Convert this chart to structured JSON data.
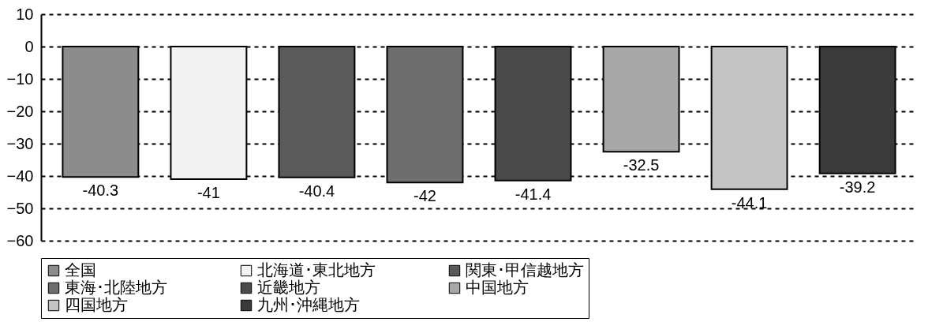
{
  "chart_data": {
    "type": "bar",
    "categories": [
      null,
      null,
      null,
      null,
      null,
      null,
      null,
      null
    ],
    "series": [
      {
        "name": "全国",
        "color": "#8c8c8c",
        "values": [
          -40.3,
          null,
          null,
          null,
          null,
          null,
          null,
          null
        ]
      },
      {
        "name": "北海道･東北地方",
        "color": "#f2f2f2",
        "values": [
          null,
          -41,
          null,
          null,
          null,
          null,
          null,
          null
        ]
      },
      {
        "name": "関東･甲信越地方",
        "color": "#5a5a5a",
        "values": [
          null,
          null,
          -40.4,
          null,
          null,
          null,
          null,
          null
        ]
      },
      {
        "name": "東海･北陸地方",
        "color": "#6e6e6e",
        "values": [
          null,
          null,
          null,
          -42,
          null,
          null,
          null,
          null
        ]
      },
      {
        "name": "近畿地方",
        "color": "#4a4a4a",
        "values": [
          null,
          null,
          null,
          null,
          -41.4,
          null,
          null,
          null
        ]
      },
      {
        "name": "中国地方",
        "color": "#a8a8a8",
        "values": [
          null,
          null,
          null,
          null,
          null,
          -32.5,
          null,
          null
        ]
      },
      {
        "name": "四国地方",
        "color": "#c4c4c4",
        "values": [
          null,
          null,
          null,
          null,
          null,
          null,
          -44.1,
          null
        ]
      },
      {
        "name": "九州･沖縄地方",
        "color": "#3a3a3a",
        "values": [
          null,
          null,
          null,
          null,
          null,
          null,
          null,
          -39.2
        ]
      }
    ],
    "ylim": [
      -60,
      10
    ],
    "yticks": [
      -60,
      -50,
      -40,
      -30,
      -20,
      -10,
      0,
      10
    ],
    "grid": "y",
    "legend": "bottom",
    "tick_labels": "y",
    "data_labels": true
  }
}
